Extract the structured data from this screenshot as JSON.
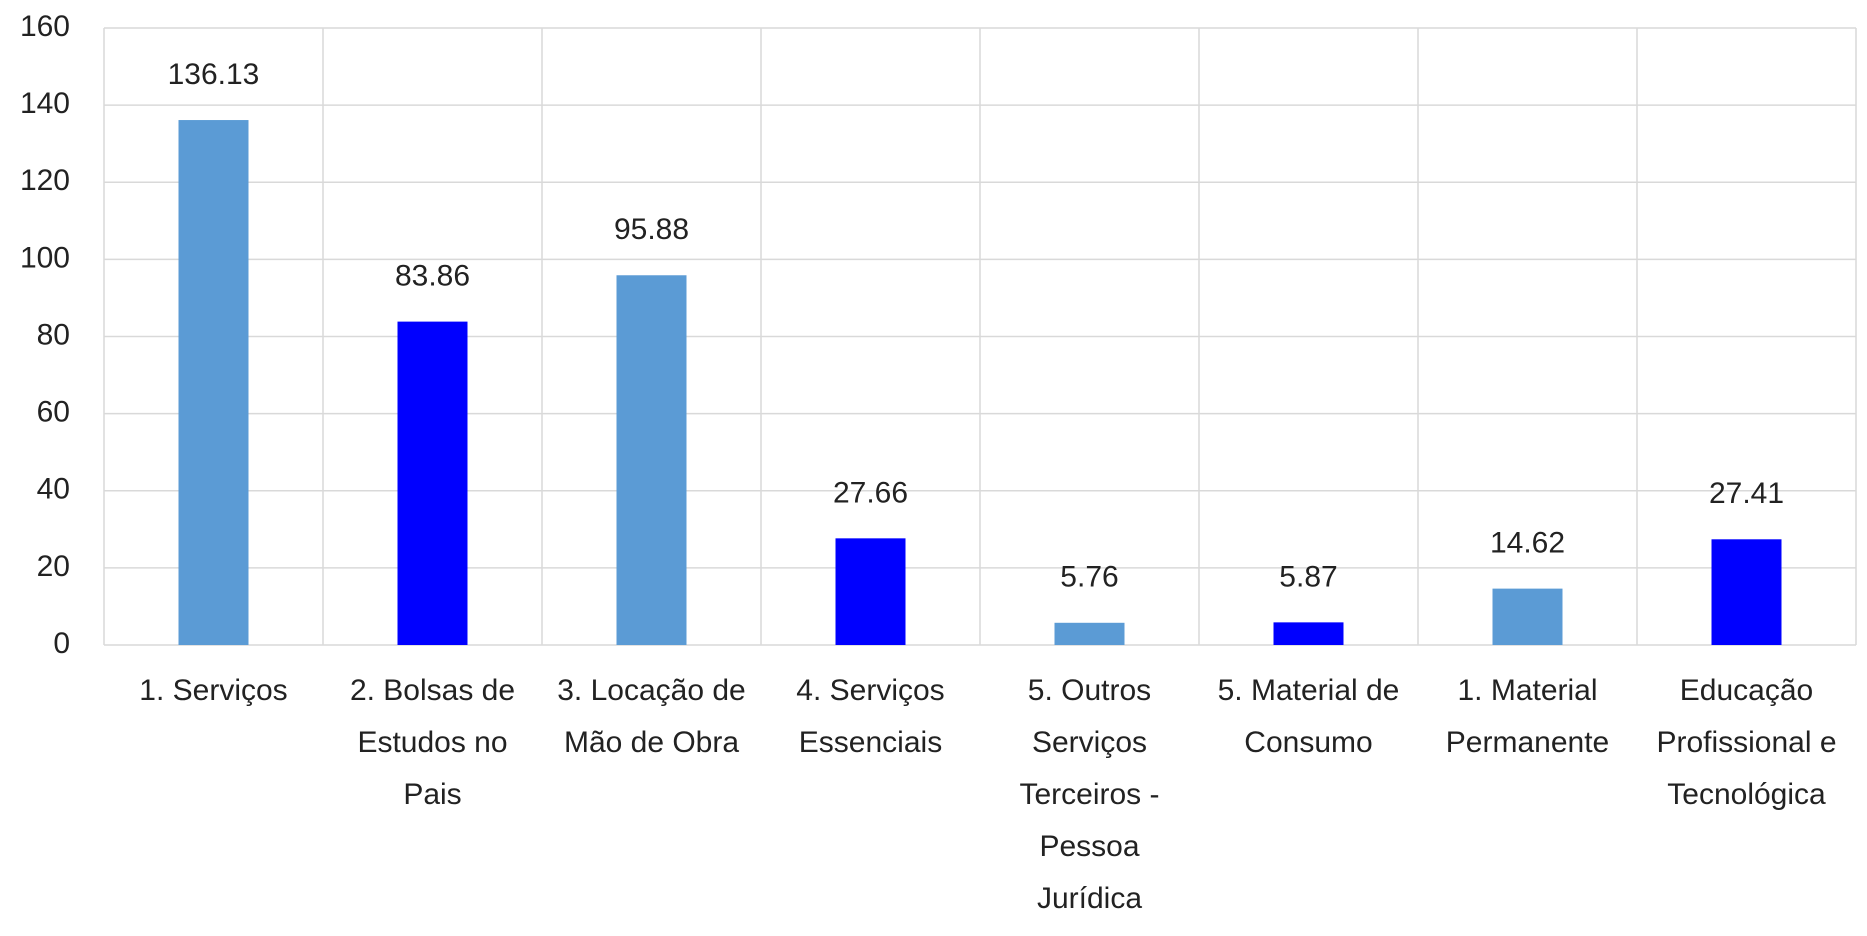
{
  "chart_data": {
    "type": "bar",
    "categories": [
      "1. Serviços",
      "2. Bolsas de Estudos no Pais",
      "3. Locação de Mão de Obra",
      "4. Serviços Essenciais",
      "5. Outros Serviços Terceiros - Pessoa Jurídica",
      "5. Material de Consumo",
      "1. Material Permanente",
      "Educação Profissional e Tecnológica"
    ],
    "values": [
      136.13,
      83.86,
      95.88,
      27.66,
      5.76,
      5.87,
      14.62,
      27.41
    ],
    "colors": [
      "#5b9bd5",
      "#0000ff",
      "#5b9bd5",
      "#0000ff",
      "#5b9bd5",
      "#0000ff",
      "#5b9bd5",
      "#0000ff"
    ],
    "ylim": [
      0,
      160
    ],
    "yticks": [
      0,
      20,
      40,
      60,
      80,
      100,
      120,
      140,
      160
    ],
    "grid": true
  }
}
